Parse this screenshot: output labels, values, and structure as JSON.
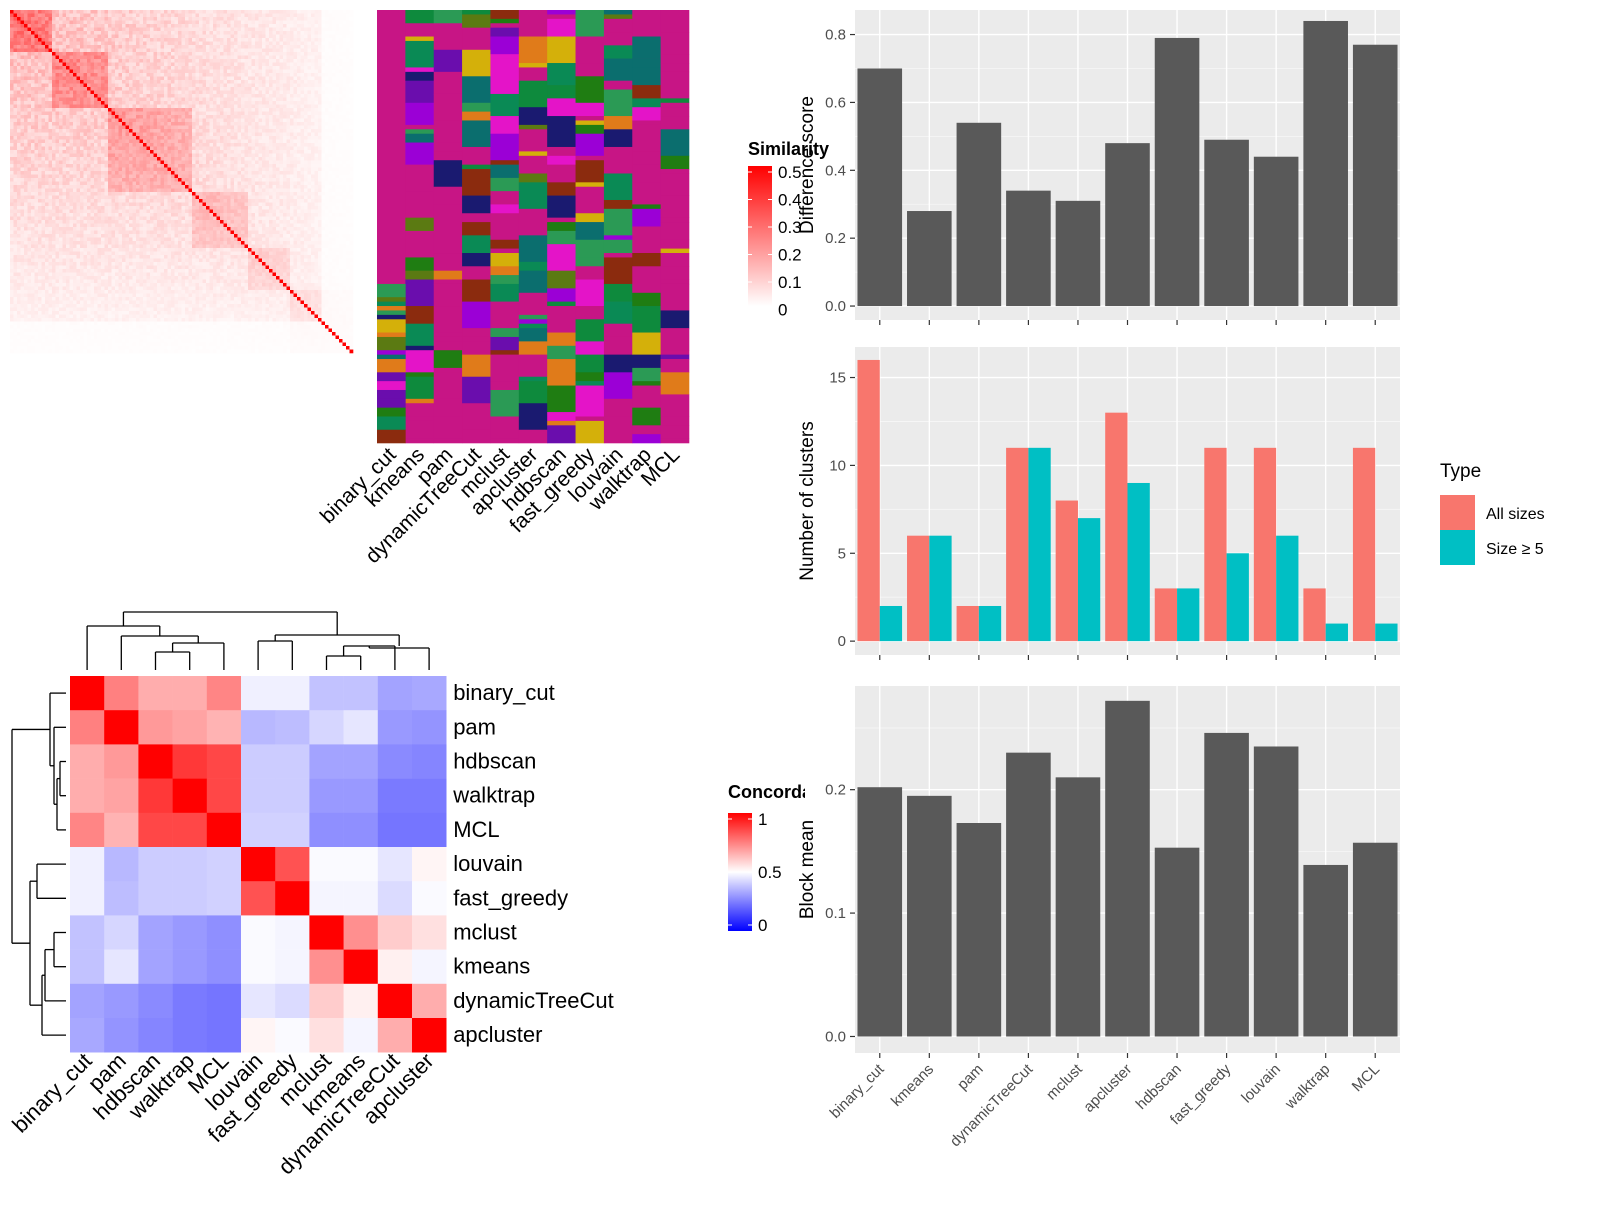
{
  "method_labels": [
    "binary_cut",
    "kmeans",
    "pam",
    "dynamicTreeCut",
    "mclust",
    "apcluster",
    "hdbscan",
    "fast_greedy",
    "louvain",
    "walktrap",
    "MCL"
  ],
  "chart_data": [
    {
      "id": "similarity-heatmap",
      "type": "heatmap",
      "legend_title": "Similarity",
      "legend_ticks": [
        "0.5",
        "0.4",
        "0.3",
        "0.2",
        "0.1",
        "0"
      ],
      "color_low": "#ffffff",
      "color_high": "#ff0000",
      "value_range": [
        0,
        0.5
      ],
      "values": []
    },
    {
      "id": "cluster-assignment-grid",
      "type": "heatmap",
      "columns": [
        "binary_cut",
        "kmeans",
        "pam",
        "dynamicTreeCut",
        "mclust",
        "apcluster",
        "hdbscan",
        "fast_greedy",
        "louvain",
        "walktrap",
        "MCL"
      ],
      "palette": [
        "#c71585",
        "#8b2b0e",
        "#e07b1a",
        "#0e8a3d",
        "#0a8a55",
        "#1a1a70",
        "#6a0dad",
        "#9b00d6",
        "#d4b00a",
        "#0b6e6e",
        "#e414c8",
        "#5b7a12",
        "#1f7d12",
        "#2b9a55"
      ]
    },
    {
      "id": "concordance-heatmap",
      "type": "heatmap",
      "legend_title": "Concordance",
      "legend_ticks": [
        "1",
        "0.5",
        "0"
      ],
      "rows": [
        "binary_cut",
        "pam",
        "hdbscan",
        "walktrap",
        "MCL",
        "louvain",
        "fast_greedy",
        "mclust",
        "kmeans",
        "dynamicTreeCut",
        "apcluster"
      ],
      "cols": [
        "binary_cut",
        "pam",
        "hdbscan",
        "walktrap",
        "MCL",
        "louvain",
        "fast_greedy",
        "mclust",
        "kmeans",
        "dynamicTreeCut",
        "apcluster"
      ],
      "values": [
        [
          1.0,
          0.75,
          0.66,
          0.66,
          0.74,
          0.47,
          0.47,
          0.38,
          0.38,
          0.32,
          0.33
        ],
        [
          0.75,
          1.0,
          0.7,
          0.68,
          0.65,
          0.36,
          0.37,
          0.42,
          0.45,
          0.3,
          0.29
        ],
        [
          0.66,
          0.7,
          1.0,
          0.89,
          0.86,
          0.4,
          0.4,
          0.32,
          0.32,
          0.27,
          0.26
        ],
        [
          0.66,
          0.68,
          0.89,
          1.0,
          0.86,
          0.4,
          0.4,
          0.3,
          0.3,
          0.24,
          0.24
        ],
        [
          0.74,
          0.65,
          0.86,
          0.86,
          1.0,
          0.41,
          0.41,
          0.28,
          0.28,
          0.23,
          0.23
        ],
        [
          0.47,
          0.36,
          0.4,
          0.4,
          0.41,
          1.0,
          0.84,
          0.49,
          0.49,
          0.45,
          0.52
        ],
        [
          0.47,
          0.37,
          0.4,
          0.4,
          0.41,
          0.84,
          1.0,
          0.48,
          0.48,
          0.43,
          0.49
        ],
        [
          0.38,
          0.42,
          0.32,
          0.3,
          0.28,
          0.49,
          0.48,
          1.0,
          0.72,
          0.6,
          0.56
        ],
        [
          0.38,
          0.45,
          0.32,
          0.3,
          0.28,
          0.49,
          0.48,
          0.72,
          1.0,
          0.53,
          0.48
        ],
        [
          0.32,
          0.3,
          0.27,
          0.24,
          0.23,
          0.45,
          0.43,
          0.6,
          0.53,
          1.0,
          0.66
        ],
        [
          0.33,
          0.29,
          0.26,
          0.24,
          0.23,
          0.52,
          0.49,
          0.56,
          0.48,
          0.66,
          1.0
        ]
      ]
    },
    {
      "id": "difference-score",
      "type": "bar",
      "categories": [
        "binary_cut",
        "kmeans",
        "pam",
        "dynamicTreeCut",
        "mclust",
        "apcluster",
        "hdbscan",
        "fast_greedy",
        "louvain",
        "walktrap",
        "MCL"
      ],
      "values": [
        0.7,
        0.28,
        0.54,
        0.34,
        0.31,
        0.48,
        0.79,
        0.49,
        0.44,
        0.84,
        0.77
      ],
      "ylabel": "Difference score",
      "ylim": [
        0,
        0.86
      ],
      "yticks": [
        "0.0",
        "0.2",
        "0.4",
        "0.6",
        "0.8"
      ],
      "bar_color": "#595959"
    },
    {
      "id": "number-of-clusters",
      "type": "bar",
      "categories": [
        "binary_cut",
        "kmeans",
        "pam",
        "dynamicTreeCut",
        "mclust",
        "apcluster",
        "hdbscan",
        "fast_greedy",
        "louvain",
        "walktrap",
        "MCL"
      ],
      "series": [
        {
          "name": "All sizes",
          "color": "#f8766d",
          "values": [
            16,
            6,
            2,
            11,
            8,
            13,
            3,
            11,
            11,
            3,
            11
          ]
        },
        {
          "name": "Size ≥ 5",
          "color": "#00bfc4",
          "values": [
            2,
            6,
            2,
            11,
            7,
            9,
            3,
            5,
            6,
            1,
            1
          ]
        }
      ],
      "ylabel": "Number of clusters",
      "ylim": [
        0,
        16.5
      ],
      "yticks": [
        "0",
        "5",
        "10",
        "15"
      ],
      "legend_title": "Type",
      "legend_position": "right"
    },
    {
      "id": "block-mean",
      "type": "bar",
      "categories": [
        "binary_cut",
        "kmeans",
        "pam",
        "dynamicTreeCut",
        "mclust",
        "apcluster",
        "hdbscan",
        "fast_greedy",
        "louvain",
        "walktrap",
        "MCL"
      ],
      "values": [
        0.202,
        0.195,
        0.173,
        0.23,
        0.21,
        0.272,
        0.153,
        0.246,
        0.235,
        0.139,
        0.157
      ],
      "ylabel": "Block mean",
      "ylim": [
        0,
        0.28
      ],
      "yticks": [
        "0.0",
        "0.1",
        "0.2"
      ],
      "bar_color": "#595959"
    }
  ]
}
